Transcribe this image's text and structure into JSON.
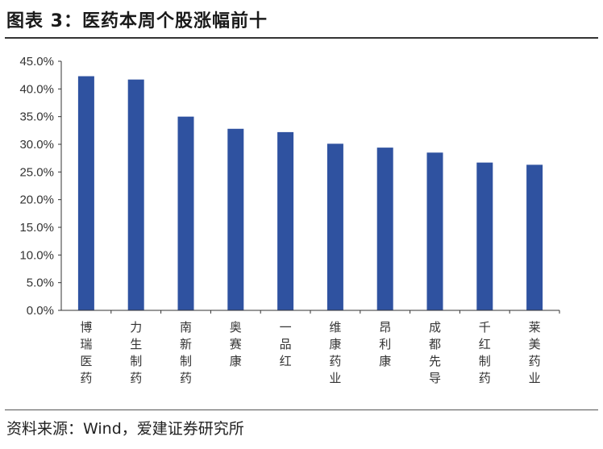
{
  "header": {
    "title": "图表 3：医药本周个股涨幅前十"
  },
  "footer": {
    "source": "资料来源：Wind，爱建证券研究所"
  },
  "colors": {
    "bar": "#2F52A0",
    "axis": "#333333"
  },
  "chart_data": {
    "type": "bar",
    "categories": [
      "博瑞医药",
      "力生制药",
      "南新制药",
      "奥赛康",
      "一品红",
      "维康药业",
      "昂利康",
      "成都先导",
      "千红制药",
      "莱美药业"
    ],
    "values": [
      42.3,
      41.7,
      35.0,
      32.8,
      32.2,
      30.1,
      29.4,
      28.5,
      26.7,
      26.3
    ],
    "yticks": [
      "0.0%",
      "5.0%",
      "10.0%",
      "15.0%",
      "20.0%",
      "25.0%",
      "30.0%",
      "35.0%",
      "40.0%",
      "45.0%"
    ],
    "ylim": [
      0,
      45
    ],
    "grid": false,
    "legend": "none"
  }
}
